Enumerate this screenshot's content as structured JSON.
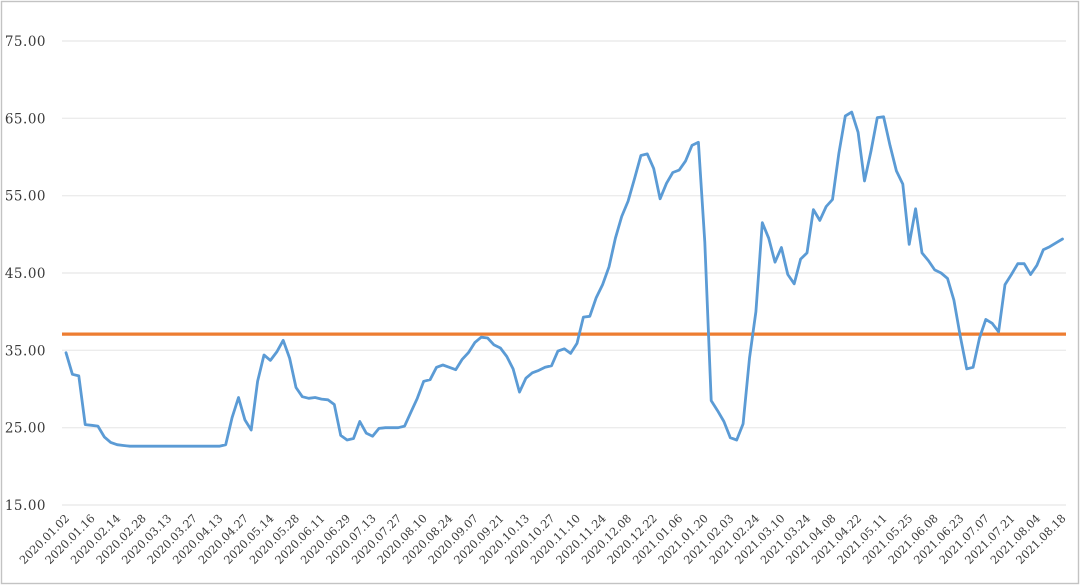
{
  "panel": {
    "background": "#ffffff",
    "border_color": "#c3c3c3"
  },
  "chart_data": {
    "type": "line",
    "title": "",
    "legend_position": "none",
    "grid": true,
    "gridline_color": "#ececec",
    "tick_text_color": "#3a3a3a",
    "y_axis": {
      "min": 15,
      "max": 75,
      "step": 10,
      "tick_labels": [
        "75.00",
        "65.00",
        "55.00",
        "45.00",
        "35.00",
        "25.00",
        "15.00"
      ]
    },
    "x_labels": [
      "2020.01.02",
      "2020.01.16",
      "2020.02.14",
      "2020.02.28",
      "2020.03.13",
      "2020.03.27",
      "2020.04.13",
      "2020.04.27",
      "2020.05.14",
      "2020.05.28",
      "2020.06.11",
      "2020.06.29",
      "2020.07.13",
      "2020.07.27",
      "2020.08.10",
      "2020.08.24",
      "2020.09.07",
      "2020.09.21",
      "2020.10.13",
      "2020.10.27",
      "2020.11.10",
      "2020.11.24",
      "2020.12.08",
      "2020.12.22",
      "2021.01.06",
      "2021.01.20",
      "2021.02.03",
      "2021.02.24",
      "2021.03.10",
      "2021.03.24",
      "2021.04.08",
      "2021.04.22",
      "2021.05.11",
      "2021.05.25",
      "2021.06.08",
      "2021.06.23",
      "2021.07.07",
      "2021.07.21",
      "2021.08.04",
      "2021.08.18"
    ],
    "points_per_label": 4,
    "series": [
      {
        "name": "price-line",
        "color": "#5B9BD5",
        "values": [
          34.7,
          31.9,
          31.7,
          25.4,
          25.3,
          25.2,
          23.8,
          23.1,
          22.8,
          22.7,
          22.6,
          22.6,
          22.6,
          22.6,
          22.6,
          22.6,
          22.6,
          22.6,
          22.6,
          22.6,
          22.6,
          22.6,
          22.6,
          22.6,
          22.6,
          22.8,
          26.3,
          28.9,
          26.0,
          24.7,
          31.0,
          34.4,
          33.7,
          34.8,
          36.3,
          34.0,
          30.2,
          29.0,
          28.8,
          28.9,
          28.7,
          28.6,
          28.0,
          24.0,
          23.4,
          23.6,
          25.8,
          24.3,
          23.9,
          24.9,
          25.0,
          25.0,
          25.0,
          25.2,
          27.0,
          28.8,
          31.0,
          31.2,
          32.8,
          33.1,
          32.8,
          32.5,
          33.8,
          34.7,
          36.0,
          36.7,
          36.6,
          35.7,
          35.3,
          34.2,
          32.6,
          29.6,
          31.4,
          32.1,
          32.4,
          32.8,
          33.0,
          34.9,
          35.2,
          34.6,
          35.9,
          39.3,
          39.4,
          41.8,
          43.5,
          45.8,
          49.5,
          52.3,
          54.3,
          57.2,
          60.2,
          60.4,
          58.5,
          54.6,
          56.6,
          58.0,
          58.3,
          59.5,
          61.5,
          61.9,
          49.0,
          28.5,
          27.2,
          25.8,
          23.7,
          23.4,
          25.5,
          34.0,
          40.0,
          51.5,
          49.5,
          46.4,
          48.3,
          44.8,
          43.6,
          46.8,
          47.6,
          53.2,
          51.8,
          53.6,
          54.5,
          60.5,
          65.3,
          65.8,
          63.2,
          56.9,
          60.7,
          65.1,
          65.2,
          61.5,
          58.2,
          56.5,
          48.7,
          53.3,
          47.6,
          46.6,
          45.4,
          45.0,
          44.3,
          41.5,
          36.8,
          32.6,
          32.8,
          36.6,
          39.0,
          38.5,
          37.4,
          43.5,
          44.8,
          46.2,
          46.2,
          44.8,
          46.0,
          48.0,
          48.4,
          48.9,
          49.4
        ]
      }
    ],
    "reference_line": {
      "name": "reference-line",
      "value": 37.1,
      "color": "#ED7D31"
    }
  }
}
